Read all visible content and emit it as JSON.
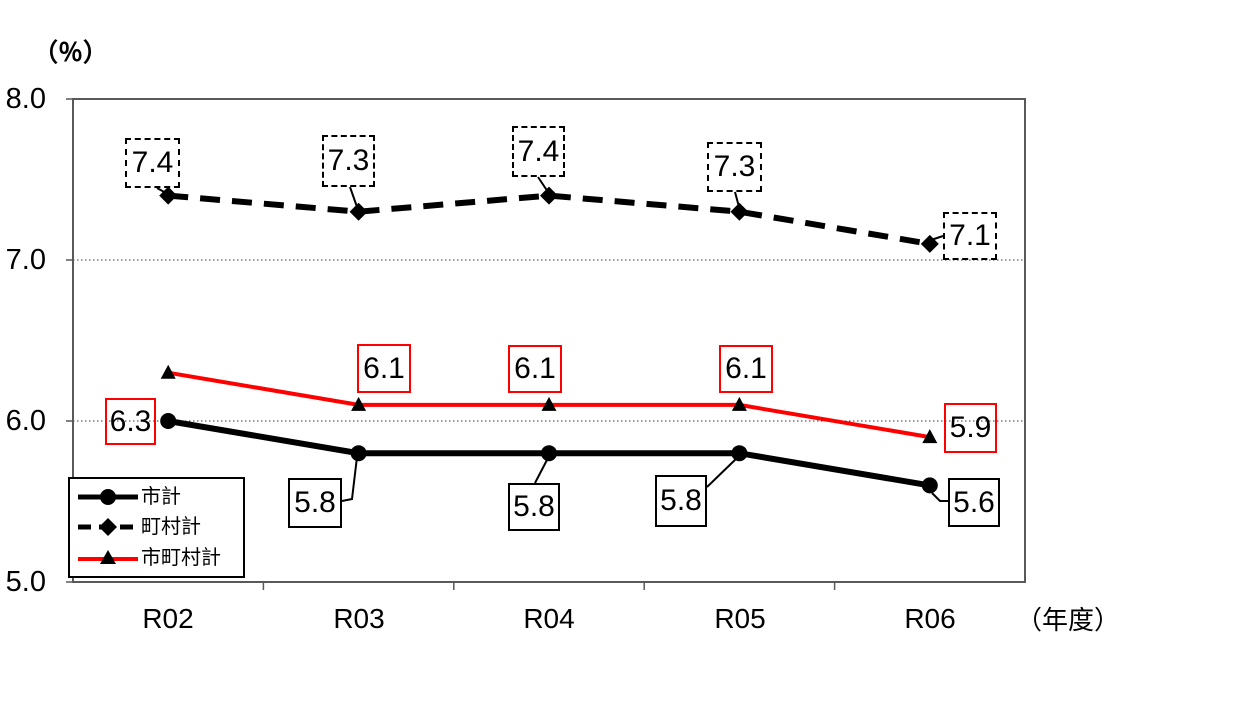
{
  "chart_data": {
    "type": "line",
    "title": "",
    "y_unit_label": "（％）",
    "x_unit_label": "（年度）",
    "categories": [
      "R02",
      "R03",
      "R04",
      "R05",
      "R06"
    ],
    "ylim": [
      5.0,
      8.0
    ],
    "y_ticks": [
      8.0,
      7.0,
      6.0,
      5.0
    ],
    "y_tick_labels": [
      "8.0",
      "7.0",
      "6.0",
      "5.0"
    ],
    "grid": "horizontal dotted gridlines at 6.0 and 7.0",
    "legend_position": "inside bottom-left",
    "series": [
      {
        "name": "市計",
        "color": "#000000",
        "line_style": "solid",
        "marker": "circle",
        "marker_color": "#000000",
        "values": [
          6.0,
          5.8,
          5.8,
          5.8,
          5.6
        ],
        "point_labels": [
          "",
          "5.8",
          "5.8",
          "5.8",
          "5.6"
        ],
        "label_box_style": "solid-black"
      },
      {
        "name": "町村計",
        "color": "#000000",
        "line_style": "dashed",
        "marker": "diamond",
        "marker_color": "#000000",
        "values": [
          7.4,
          7.3,
          7.4,
          7.3,
          7.1
        ],
        "point_labels": [
          "7.4",
          "7.3",
          "7.4",
          "7.3",
          "7.1"
        ],
        "label_box_style": "dashed-black"
      },
      {
        "name": "市町村計",
        "color": "#ff0000",
        "line_style": "solid",
        "marker": "triangle",
        "marker_color": "#000000",
        "values": [
          6.3,
          6.1,
          6.1,
          6.1,
          5.9
        ],
        "point_labels": [
          "6.3",
          "6.1",
          "6.1",
          "6.1",
          "5.9"
        ],
        "label_box_style": "solid-red"
      }
    ]
  }
}
